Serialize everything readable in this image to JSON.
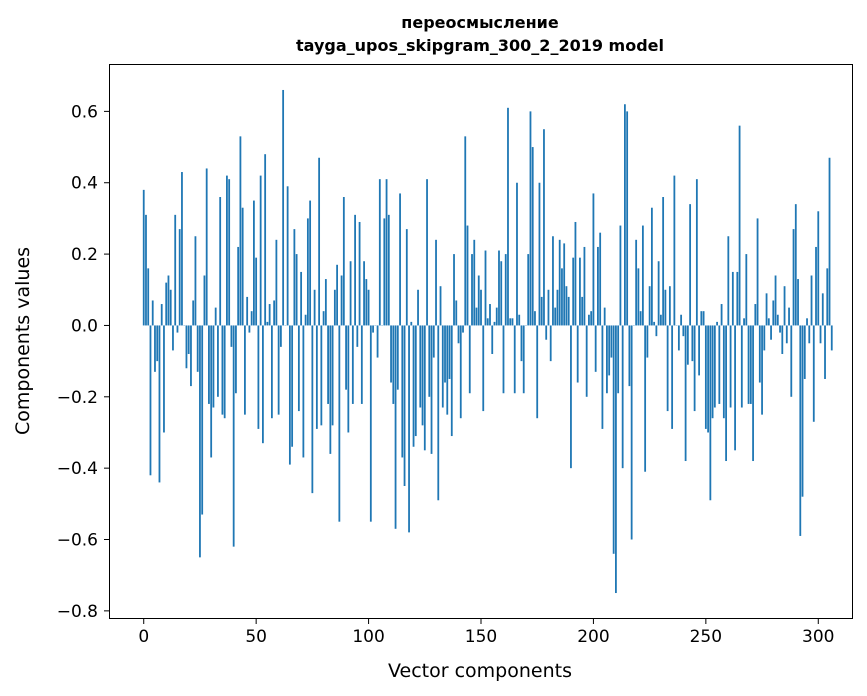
{
  "chart_data": {
    "type": "bar",
    "title_line1": "переосмысление",
    "title_line2": "tayga_upos_skipgram_300_2_2019 model",
    "xlabel": "Vector components",
    "ylabel": "Components values",
    "xlim": [
      -15,
      315
    ],
    "ylim": [
      -0.82,
      0.73
    ],
    "x_ticks": [
      0,
      50,
      100,
      150,
      200,
      250,
      300
    ],
    "x_tick_labels": [
      "0",
      "50",
      "100",
      "150",
      "200",
      "250",
      "300"
    ],
    "y_ticks": [
      -0.8,
      -0.6,
      -0.4,
      -0.2,
      0.0,
      0.2,
      0.4,
      0.6
    ],
    "y_tick_labels": [
      "−0.8",
      "−0.6",
      "−0.4",
      "−0.2",
      "0.0",
      "0.2",
      "0.4",
      "0.6"
    ],
    "bar_color": "#1f77b4",
    "grid": false,
    "values": [
      0.38,
      0.31,
      0.16,
      -0.42,
      0.07,
      -0.13,
      -0.1,
      -0.44,
      0.06,
      -0.3,
      0.12,
      0.14,
      0.1,
      -0.07,
      0.31,
      -0.02,
      0.27,
      0.43,
      0.0,
      -0.12,
      -0.08,
      -0.17,
      0.07,
      0.25,
      -0.13,
      -0.65,
      -0.53,
      0.14,
      0.44,
      -0.22,
      -0.37,
      -0.23,
      0.05,
      -0.2,
      0.36,
      -0.25,
      -0.26,
      0.42,
      0.41,
      -0.06,
      -0.62,
      -0.19,
      0.22,
      0.53,
      0.33,
      -0.25,
      0.08,
      -0.02,
      0.04,
      0.35,
      0.19,
      -0.29,
      0.42,
      -0.33,
      0.48,
      0.01,
      0.06,
      -0.26,
      0.07,
      0.24,
      -0.25,
      -0.06,
      0.66,
      0.0,
      0.39,
      -0.39,
      -0.34,
      0.27,
      0.2,
      -0.24,
      0.15,
      -0.37,
      0.03,
      0.3,
      0.35,
      -0.47,
      0.1,
      -0.29,
      0.47,
      -0.28,
      0.04,
      0.13,
      -0.22,
      -0.36,
      -0.28,
      0.1,
      0.17,
      -0.55,
      0.14,
      0.36,
      -0.18,
      -0.3,
      0.18,
      -0.22,
      0.31,
      -0.06,
      0.29,
      -0.22,
      0.18,
      0.13,
      0.1,
      -0.55,
      -0.02,
      0.0,
      -0.09,
      0.41,
      0.0,
      0.3,
      0.41,
      0.31,
      -0.16,
      -0.22,
      -0.57,
      -0.18,
      0.37,
      -0.37,
      -0.45,
      0.27,
      -0.58,
      0.01,
      -0.34,
      -0.31,
      0.1,
      -0.23,
      -0.28,
      -0.35,
      0.41,
      -0.2,
      -0.36,
      -0.09,
      0.24,
      -0.49,
      0.11,
      -0.23,
      -0.16,
      -0.25,
      -0.15,
      -0.31,
      0.2,
      0.07,
      -0.05,
      -0.26,
      -0.02,
      0.53,
      0.28,
      -0.19,
      0.2,
      0.24,
      0.05,
      0.14,
      0.1,
      -0.24,
      0.21,
      0.02,
      0.06,
      -0.08,
      0.01,
      0.05,
      0.21,
      0.18,
      -0.19,
      0.2,
      0.61,
      0.02,
      0.02,
      -0.19,
      0.4,
      0.03,
      -0.1,
      -0.19,
      0.0,
      0.2,
      0.6,
      0.5,
      0.04,
      -0.26,
      0.4,
      0.08,
      0.55,
      -0.04,
      0.1,
      -0.1,
      0.25,
      0.05,
      0.1,
      0.24,
      0.16,
      0.23,
      0.11,
      0.08,
      -0.4,
      0.19,
      0.29,
      -0.16,
      0.19,
      0.08,
      0.22,
      -0.2,
      0.03,
      0.04,
      0.37,
      -0.13,
      0.22,
      0.26,
      -0.29,
      0.05,
      -0.19,
      -0.14,
      -0.09,
      -0.64,
      -0.75,
      -0.19,
      0.28,
      -0.4,
      0.62,
      0.6,
      -0.17,
      -0.6,
      0.0,
      0.24,
      0.16,
      0.04,
      0.28,
      -0.41,
      -0.09,
      0.11,
      0.33,
      0.01,
      -0.03,
      0.18,
      0.03,
      0.36,
      0.1,
      -0.24,
      0.11,
      -0.29,
      0.42,
      0.0,
      -0.07,
      0.03,
      -0.03,
      -0.38,
      -0.11,
      0.34,
      -0.1,
      -0.24,
      0.41,
      -0.14,
      0.04,
      0.04,
      -0.29,
      -0.3,
      -0.49,
      -0.26,
      -0.23,
      0.01,
      -0.22,
      0.06,
      -0.26,
      -0.38,
      0.25,
      -0.23,
      0.15,
      -0.35,
      0.15,
      0.56,
      -0.23,
      0.02,
      0.2,
      -0.22,
      -0.22,
      -0.38,
      0.06,
      0.3,
      -0.16,
      -0.25,
      -0.07,
      0.09,
      0.02,
      -0.04,
      0.07,
      0.14,
      0.03,
      -0.02,
      -0.08,
      0.11,
      -0.05,
      0.05,
      -0.2,
      0.27,
      0.34,
      0.13,
      -0.59,
      -0.48,
      -0.15,
      0.02,
      -0.05,
      0.14,
      -0.27,
      0.22,
      0.32,
      -0.05,
      0.09,
      -0.15,
      0.16,
      0.47,
      -0.07
    ]
  }
}
